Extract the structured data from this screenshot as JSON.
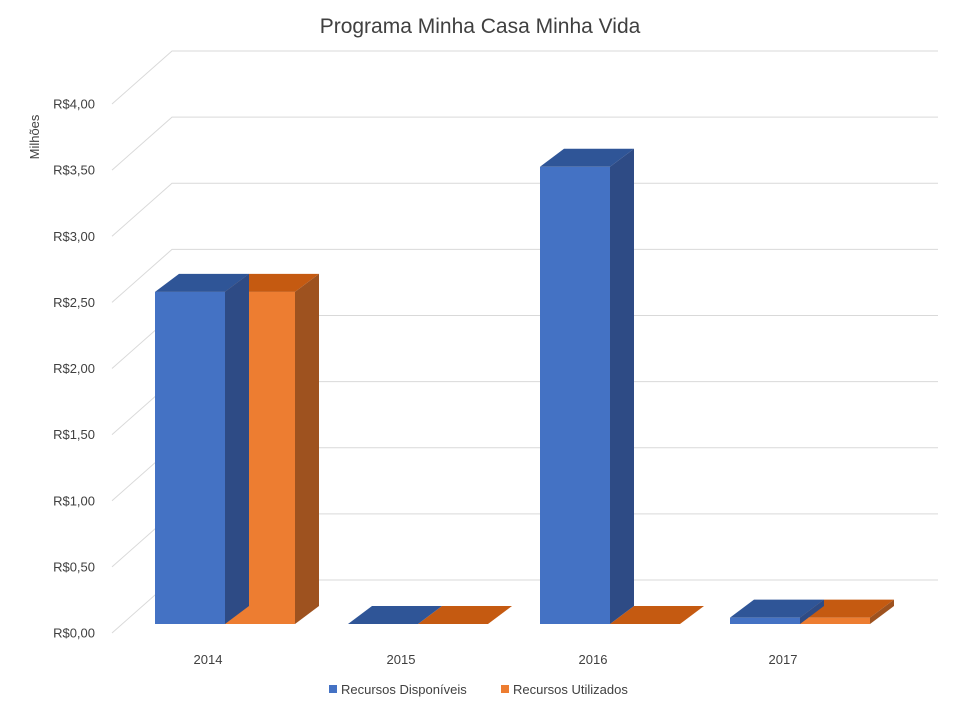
{
  "chart_data": {
    "type": "bar",
    "title": "Programa Minha Casa Minha Vida",
    "ylabel": "Milhões",
    "xlabel": "",
    "categories": [
      "2014",
      "2015",
      "2016",
      "2017"
    ],
    "series": [
      {
        "name": "Recursos Disponíveis",
        "values": [
          2.63,
          0.0,
          3.62,
          0.05
        ],
        "color": "#4472c4",
        "side_color": "#2e4b85",
        "top_color": "#2f5597"
      },
      {
        "name": "Recursos Utilizados",
        "values": [
          2.63,
          0.0,
          0.0,
          0.05
        ],
        "color": "#ed7d31",
        "side_color": "#9e521f",
        "top_color": "#c55a11"
      }
    ],
    "ylim": [
      0,
      4
    ],
    "y_ticks": [
      {
        "value": 0.0,
        "label": "R$0,00"
      },
      {
        "value": 0.5,
        "label": "R$0,50"
      },
      {
        "value": 1.0,
        "label": "R$1,00"
      },
      {
        "value": 1.5,
        "label": "R$1,50"
      },
      {
        "value": 2.0,
        "label": "R$2,00"
      },
      {
        "value": 2.5,
        "label": "R$2,50"
      },
      {
        "value": 3.0,
        "label": "R$3,00"
      },
      {
        "value": 3.5,
        "label": "R$3,50"
      },
      {
        "value": 4.0,
        "label": "R$4,00"
      }
    ],
    "grid": true,
    "legend_position": "bottom",
    "style": "3d-clustered-column"
  }
}
